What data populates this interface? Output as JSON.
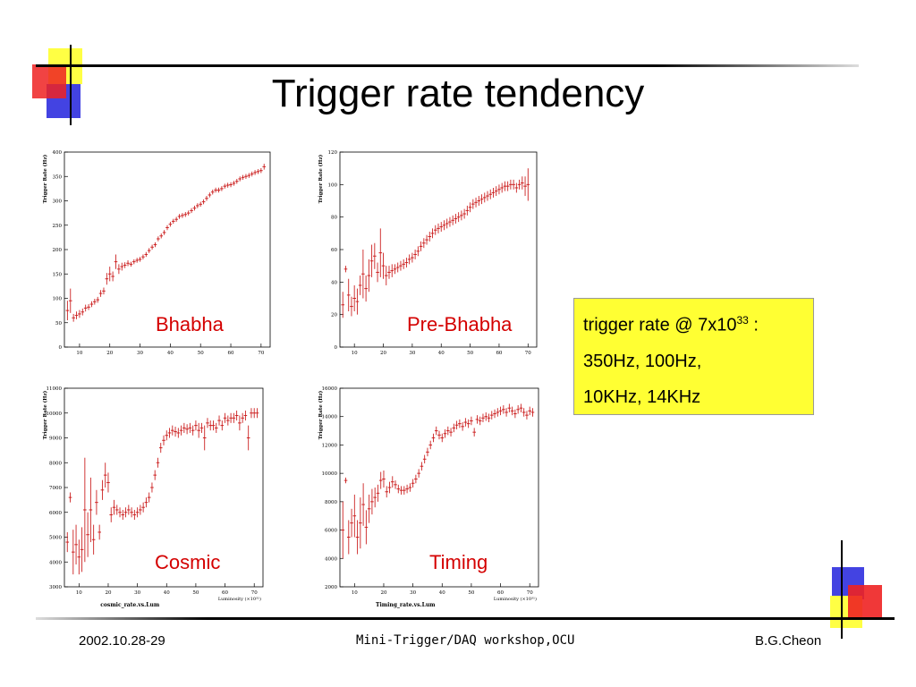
{
  "slide": {
    "title": "Trigger rate tendency",
    "footer": {
      "date": "2002.10.28-29",
      "event": "Mini-Trigger/DAQ workshop,OCU",
      "author": "B.G.Cheon"
    }
  },
  "callout": {
    "line1_main": "trigger rate @ 7x10",
    "line1_sup": "33",
    "line1_tail": " :",
    "line2": "350Hz, 100Hz,",
    "line3": "10KHz, 14KHz"
  },
  "colors": {
    "data": "#cc2222",
    "label": "#d40000",
    "callout_bg": "#ffff33"
  },
  "chart_data": [
    {
      "type": "scatter",
      "label": "Bhabha",
      "ylabel": "Trigger Rate (Hz)",
      "xlabel": "",
      "subtitle": "",
      "xlim": [
        5,
        73
      ],
      "ylim": [
        0,
        400
      ],
      "xticks": [
        10,
        20,
        30,
        40,
        50,
        60,
        70
      ],
      "yticks": [
        0,
        50,
        100,
        150,
        200,
        250,
        300,
        350,
        400
      ],
      "points": [
        [
          6,
          75,
          20
        ],
        [
          7,
          95,
          25
        ],
        [
          8,
          60,
          8
        ],
        [
          9,
          65,
          8
        ],
        [
          10,
          68,
          8
        ],
        [
          11,
          72,
          7
        ],
        [
          12,
          80,
          7
        ],
        [
          13,
          82,
          6
        ],
        [
          14,
          88,
          6
        ],
        [
          15,
          93,
          6
        ],
        [
          16,
          97,
          6
        ],
        [
          17,
          110,
          7
        ],
        [
          18,
          115,
          7
        ],
        [
          19,
          140,
          12
        ],
        [
          20,
          150,
          15
        ],
        [
          21,
          145,
          10
        ],
        [
          22,
          175,
          15
        ],
        [
          23,
          160,
          10
        ],
        [
          24,
          165,
          8
        ],
        [
          25,
          168,
          6
        ],
        [
          26,
          172,
          6
        ],
        [
          27,
          170,
          5
        ],
        [
          28,
          175,
          5
        ],
        [
          29,
          178,
          5
        ],
        [
          30,
          180,
          5
        ],
        [
          31,
          185,
          5
        ],
        [
          32,
          190,
          5
        ],
        [
          33,
          198,
          5
        ],
        [
          34,
          205,
          5
        ],
        [
          35,
          210,
          5
        ],
        [
          36,
          222,
          5
        ],
        [
          37,
          228,
          5
        ],
        [
          38,
          235,
          5
        ],
        [
          39,
          245,
          5
        ],
        [
          40,
          252,
          5
        ],
        [
          41,
          258,
          5
        ],
        [
          42,
          262,
          5
        ],
        [
          43,
          268,
          5
        ],
        [
          44,
          270,
          5
        ],
        [
          45,
          272,
          5
        ],
        [
          46,
          275,
          5
        ],
        [
          47,
          280,
          5
        ],
        [
          48,
          285,
          5
        ],
        [
          49,
          290,
          5
        ],
        [
          50,
          293,
          5
        ],
        [
          51,
          298,
          5
        ],
        [
          52,
          305,
          5
        ],
        [
          53,
          312,
          5
        ],
        [
          54,
          318,
          5
        ],
        [
          55,
          322,
          5
        ],
        [
          56,
          322,
          5
        ],
        [
          57,
          325,
          5
        ],
        [
          58,
          330,
          5
        ],
        [
          59,
          332,
          5
        ],
        [
          60,
          333,
          5
        ],
        [
          61,
          336,
          5
        ],
        [
          62,
          340,
          5
        ],
        [
          63,
          345,
          5
        ],
        [
          64,
          348,
          5
        ],
        [
          65,
          350,
          5
        ],
        [
          66,
          352,
          5
        ],
        [
          67,
          355,
          5
        ],
        [
          68,
          358,
          5
        ],
        [
          69,
          360,
          5
        ],
        [
          70,
          362,
          5
        ],
        [
          71,
          370,
          6
        ]
      ]
    },
    {
      "type": "scatter",
      "label": "Pre-Bhabha",
      "ylabel": "Trigger Rate (Hz)",
      "xlabel": "",
      "subtitle": "",
      "xlim": [
        5,
        73
      ],
      "ylim": [
        0,
        120
      ],
      "xticks": [
        10,
        20,
        30,
        40,
        50,
        60,
        70
      ],
      "yticks": [
        0,
        20,
        40,
        60,
        80,
        100,
        120
      ],
      "points": [
        [
          6,
          26,
          8
        ],
        [
          7,
          48,
          2
        ],
        [
          8,
          32,
          10
        ],
        [
          9,
          25,
          6
        ],
        [
          10,
          30,
          8
        ],
        [
          11,
          28,
          8
        ],
        [
          12,
          38,
          6
        ],
        [
          13,
          45,
          15
        ],
        [
          14,
          36,
          8
        ],
        [
          15,
          44,
          10
        ],
        [
          16,
          53,
          10
        ],
        [
          17,
          56,
          8
        ],
        [
          18,
          46,
          6
        ],
        [
          19,
          58,
          15
        ],
        [
          20,
          50,
          8
        ],
        [
          21,
          44,
          6
        ],
        [
          22,
          46,
          4
        ],
        [
          23,
          47,
          4
        ],
        [
          24,
          48,
          3
        ],
        [
          25,
          49,
          3
        ],
        [
          26,
          50,
          3
        ],
        [
          27,
          51,
          3
        ],
        [
          28,
          52,
          3
        ],
        [
          29,
          54,
          3
        ],
        [
          30,
          55,
          3
        ],
        [
          31,
          57,
          3
        ],
        [
          32,
          59,
          3
        ],
        [
          33,
          62,
          3
        ],
        [
          34,
          64,
          3
        ],
        [
          35,
          66,
          3
        ],
        [
          36,
          68,
          3
        ],
        [
          37,
          70,
          3
        ],
        [
          38,
          72,
          3
        ],
        [
          39,
          73,
          3
        ],
        [
          40,
          74,
          3
        ],
        [
          41,
          75,
          3
        ],
        [
          42,
          76,
          3
        ],
        [
          43,
          77,
          3
        ],
        [
          44,
          78,
          3
        ],
        [
          45,
          79,
          3
        ],
        [
          46,
          80,
          3
        ],
        [
          47,
          81,
          3
        ],
        [
          48,
          82,
          3
        ],
        [
          49,
          84,
          3
        ],
        [
          50,
          86,
          3
        ],
        [
          51,
          88,
          3
        ],
        [
          52,
          89,
          3
        ],
        [
          53,
          90,
          3
        ],
        [
          54,
          91,
          3
        ],
        [
          55,
          92,
          3
        ],
        [
          56,
          93,
          3
        ],
        [
          57,
          94,
          3
        ],
        [
          58,
          95,
          3
        ],
        [
          59,
          96,
          3
        ],
        [
          60,
          97,
          3
        ],
        [
          61,
          98,
          3
        ],
        [
          62,
          99,
          3
        ],
        [
          63,
          99,
          3
        ],
        [
          64,
          100,
          3
        ],
        [
          65,
          100,
          3
        ],
        [
          66,
          98,
          3
        ],
        [
          67,
          100,
          3
        ],
        [
          68,
          101,
          4
        ],
        [
          69,
          99,
          6
        ],
        [
          70,
          100,
          10
        ]
      ]
    },
    {
      "type": "scatter",
      "label": "Cosmic",
      "ylabel": "Trigger Rate (Hz)",
      "xlabel": "Luminosity (×10³¹)",
      "subtitle": "cosmic_rate.vs.Lum",
      "xlim": [
        5,
        73
      ],
      "ylim": [
        3000,
        11000
      ],
      "xticks": [
        10,
        20,
        30,
        40,
        50,
        60,
        70
      ],
      "yticks": [
        3000,
        4000,
        5000,
        6000,
        7000,
        8000,
        9000,
        10000,
        11000
      ],
      "points": [
        [
          6,
          4800,
          400
        ],
        [
          7,
          6600,
          200
        ],
        [
          8,
          4400,
          900
        ],
        [
          9,
          4700,
          800
        ],
        [
          10,
          4200,
          700
        ],
        [
          11,
          4500,
          900
        ],
        [
          12,
          6100,
          2100
        ],
        [
          13,
          5100,
          900
        ],
        [
          14,
          6100,
          1300
        ],
        [
          15,
          4900,
          600
        ],
        [
          16,
          6400,
          500
        ],
        [
          17,
          5200,
          300
        ],
        [
          18,
          6900,
          400
        ],
        [
          19,
          7500,
          500
        ],
        [
          20,
          7200,
          400
        ],
        [
          21,
          5900,
          300
        ],
        [
          22,
          6200,
          300
        ],
        [
          23,
          6100,
          200
        ],
        [
          24,
          6000,
          200
        ],
        [
          25,
          5900,
          200
        ],
        [
          26,
          6000,
          200
        ],
        [
          27,
          6100,
          200
        ],
        [
          28,
          6000,
          200
        ],
        [
          29,
          5900,
          200
        ],
        [
          30,
          6000,
          200
        ],
        [
          31,
          6100,
          200
        ],
        [
          32,
          6200,
          200
        ],
        [
          33,
          6400,
          200
        ],
        [
          34,
          6600,
          200
        ],
        [
          35,
          7000,
          200
        ],
        [
          36,
          7500,
          200
        ],
        [
          37,
          8000,
          200
        ],
        [
          38,
          8600,
          200
        ],
        [
          39,
          8900,
          200
        ],
        [
          40,
          9100,
          200
        ],
        [
          41,
          9200,
          200
        ],
        [
          42,
          9300,
          200
        ],
        [
          43,
          9250,
          200
        ],
        [
          44,
          9200,
          200
        ],
        [
          45,
          9300,
          200
        ],
        [
          46,
          9400,
          200
        ],
        [
          47,
          9350,
          200
        ],
        [
          48,
          9400,
          200
        ],
        [
          49,
          9300,
          200
        ],
        [
          50,
          9500,
          200
        ],
        [
          51,
          9300,
          300
        ],
        [
          52,
          9400,
          200
        ],
        [
          53,
          9000,
          500
        ],
        [
          54,
          9600,
          200
        ],
        [
          55,
          9500,
          200
        ],
        [
          56,
          9500,
          200
        ],
        [
          57,
          9400,
          200
        ],
        [
          58,
          9700,
          200
        ],
        [
          59,
          9500,
          200
        ],
        [
          60,
          9800,
          200
        ],
        [
          61,
          9700,
          200
        ],
        [
          62,
          9800,
          200
        ],
        [
          63,
          9800,
          200
        ],
        [
          64,
          9900,
          200
        ],
        [
          65,
          9600,
          300
        ],
        [
          66,
          9800,
          200
        ],
        [
          67,
          9900,
          200
        ],
        [
          68,
          9000,
          500
        ],
        [
          69,
          10000,
          200
        ],
        [
          70,
          10000,
          200
        ],
        [
          71,
          10000,
          200
        ]
      ]
    },
    {
      "type": "scatter",
      "label": "Timing",
      "ylabel": "Trigger Rate (Hz)",
      "xlabel": "Luminosity (×10³¹)",
      "subtitle": "Timing_rate.vs.Lum",
      "xlim": [
        5,
        73
      ],
      "ylim": [
        2000,
        16000
      ],
      "xticks": [
        10,
        20,
        30,
        40,
        50,
        60,
        70
      ],
      "yticks": [
        2000,
        4000,
        6000,
        8000,
        10000,
        12000,
        14000,
        16000
      ],
      "points": [
        [
          6,
          6000,
          2000
        ],
        [
          7,
          9500,
          200
        ],
        [
          8,
          5500,
          1200
        ],
        [
          9,
          6500,
          1000
        ],
        [
          10,
          7000,
          1500
        ],
        [
          11,
          5500,
          1200
        ],
        [
          12,
          6500,
          1800
        ],
        [
          13,
          7800,
          1500
        ],
        [
          14,
          6200,
          1200
        ],
        [
          15,
          7500,
          1000
        ],
        [
          16,
          8000,
          900
        ],
        [
          17,
          8300,
          700
        ],
        [
          18,
          8600,
          600
        ],
        [
          19,
          9500,
          600
        ],
        [
          20,
          9600,
          600
        ],
        [
          21,
          8700,
          400
        ],
        [
          22,
          9000,
          400
        ],
        [
          23,
          9400,
          400
        ],
        [
          24,
          9200,
          300
        ],
        [
          25,
          8900,
          300
        ],
        [
          26,
          8800,
          300
        ],
        [
          27,
          8800,
          300
        ],
        [
          28,
          8900,
          300
        ],
        [
          29,
          9000,
          300
        ],
        [
          30,
          9300,
          300
        ],
        [
          31,
          9600,
          300
        ],
        [
          32,
          10000,
          300
        ],
        [
          33,
          10500,
          300
        ],
        [
          34,
          11000,
          300
        ],
        [
          35,
          11500,
          300
        ],
        [
          36,
          12000,
          300
        ],
        [
          37,
          12500,
          300
        ],
        [
          38,
          13000,
          300
        ],
        [
          39,
          12700,
          300
        ],
        [
          40,
          12500,
          300
        ],
        [
          41,
          12800,
          300
        ],
        [
          42,
          13000,
          300
        ],
        [
          43,
          12900,
          300
        ],
        [
          44,
          13200,
          300
        ],
        [
          45,
          13400,
          300
        ],
        [
          46,
          13500,
          300
        ],
        [
          47,
          13300,
          300
        ],
        [
          48,
          13600,
          300
        ],
        [
          49,
          13500,
          300
        ],
        [
          50,
          13700,
          300
        ],
        [
          51,
          12900,
          300
        ],
        [
          52,
          13800,
          300
        ],
        [
          53,
          13700,
          300
        ],
        [
          54,
          13900,
          300
        ],
        [
          55,
          14000,
          300
        ],
        [
          56,
          13900,
          300
        ],
        [
          57,
          14100,
          300
        ],
        [
          58,
          14200,
          300
        ],
        [
          59,
          14300,
          300
        ],
        [
          60,
          14400,
          300
        ],
        [
          61,
          14500,
          300
        ],
        [
          62,
          14300,
          300
        ],
        [
          63,
          14600,
          300
        ],
        [
          64,
          14400,
          300
        ],
        [
          65,
          14200,
          300
        ],
        [
          66,
          14500,
          300
        ],
        [
          67,
          14600,
          300
        ],
        [
          68,
          14300,
          300
        ],
        [
          69,
          14100,
          300
        ],
        [
          70,
          14400,
          300
        ],
        [
          71,
          14300,
          300
        ]
      ]
    }
  ]
}
